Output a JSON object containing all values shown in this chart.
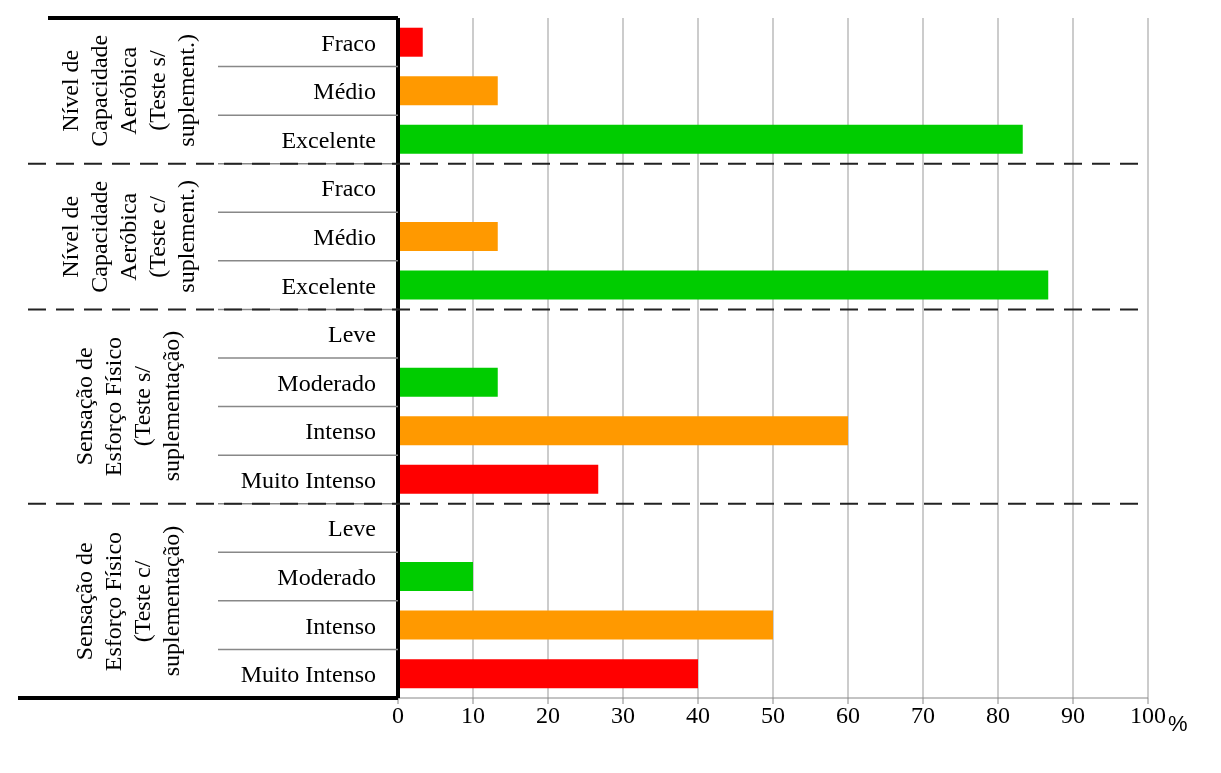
{
  "chart_data": {
    "type": "bar",
    "orientation": "horizontal",
    "categories": [
      "Fraco",
      "Médio",
      "Excelente",
      "Fraco",
      "Médio",
      "Excelente",
      "Leve",
      "Moderado",
      "Intenso",
      "Muito Intenso",
      "Leve",
      "Moderado",
      "Intenso",
      "Muito Intenso"
    ],
    "values": [
      3.3,
      13.3,
      83.3,
      null,
      13.3,
      86.7,
      null,
      13.3,
      60,
      26.7,
      null,
      10,
      50,
      40
    ],
    "colors": [
      "#ff0000",
      "#ff9900",
      "#00cc00",
      "#ff0000",
      "#ff9900",
      "#00cc00",
      "#00cc00",
      "#00cc00",
      "#ff9900",
      "#ff0000",
      "#00cc00",
      "#00cc00",
      "#ff9900",
      "#ff0000"
    ],
    "xlabel": "%",
    "xlim": [
      0,
      100
    ],
    "xticks": [
      0,
      10,
      20,
      30,
      40,
      50,
      60,
      70,
      80,
      90,
      100
    ],
    "grid": "x",
    "annotations": [
      "Nível de Capacidade Aeróbica (Teste s/ suplement.)",
      "Nível de Capacidade Aeróbica (Teste c/ suplement.)",
      "Sensação de Esforço Físico (Teste s/ suplementação)",
      "Sensação de Esforço Físico (Teste c/ suplementação)"
    ]
  }
}
